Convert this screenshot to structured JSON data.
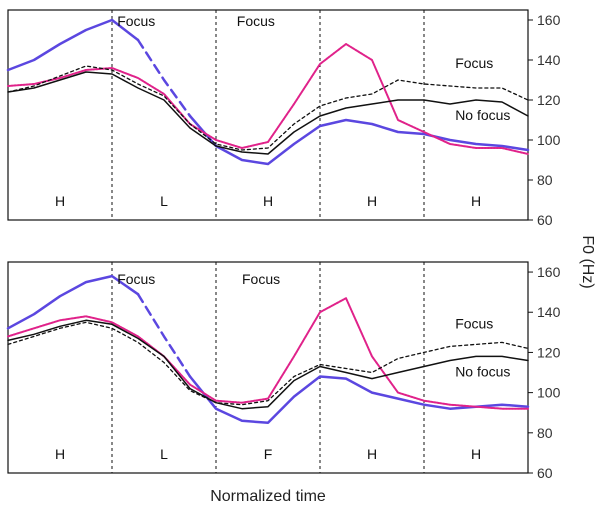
{
  "chart_data": [
    {
      "type": "line",
      "panel": "top",
      "x": [
        0,
        0.05,
        0.1,
        0.15,
        0.2,
        0.25,
        0.3,
        0.35,
        0.4,
        0.45,
        0.5,
        0.55,
        0.6,
        0.65,
        0.7,
        0.75,
        0.8,
        0.85,
        0.9,
        0.95,
        1.0
      ],
      "series": [
        {
          "key": "blue_solid",
          "color": "#5b47e0",
          "dash": "none",
          "width": 2.5,
          "values": [
            135,
            140,
            148,
            155,
            160,
            150,
            null,
            null,
            null,
            null,
            null,
            null,
            null,
            null,
            null,
            null,
            null,
            null,
            null,
            null,
            null
          ]
        },
        {
          "key": "blue_dashed",
          "color": "#5b47e0",
          "dash": "9,6",
          "width": 2.5,
          "values": [
            null,
            null,
            null,
            null,
            null,
            150,
            130,
            112,
            null,
            null,
            null,
            null,
            null,
            null,
            null,
            null,
            null,
            null,
            null,
            null,
            null
          ]
        },
        {
          "key": "blue_low",
          "color": "#5b47e0",
          "dash": "none",
          "width": 2.5,
          "values": [
            null,
            null,
            null,
            null,
            null,
            null,
            null,
            112,
            97,
            90,
            88,
            98,
            107,
            110,
            108,
            104,
            103,
            100,
            98,
            97,
            95
          ]
        },
        {
          "key": "pink",
          "color": "#e0228a",
          "dash": "2,1",
          "width": 2,
          "values": [
            127,
            128,
            131,
            135,
            136,
            131,
            123,
            108,
            100,
            96,
            99,
            118,
            138,
            148,
            140,
            110,
            104,
            98,
            96,
            96,
            93
          ]
        },
        {
          "key": "black_dashed",
          "color": "#111111",
          "dash": "3,3",
          "width": 1.3,
          "values": [
            124,
            127,
            132,
            137,
            135,
            128,
            122,
            108,
            98,
            95,
            96,
            108,
            117,
            121,
            123,
            130,
            128,
            127,
            126,
            126,
            120
          ]
        },
        {
          "key": "black_solid",
          "color": "#111111",
          "dash": "none",
          "width": 1.5,
          "values": [
            124,
            126,
            130,
            134,
            133,
            126,
            120,
            106,
            97,
            94,
            93,
            104,
            112,
            116,
            118,
            120,
            120,
            118,
            120,
            119,
            112
          ]
        }
      ],
      "ylim": [
        60,
        165
      ],
      "yticks": [
        60,
        80,
        100,
        120,
        140,
        160
      ],
      "boundaries": [
        0.2,
        0.4,
        0.6,
        0.8
      ],
      "segment_labels": [
        "H",
        "L",
        "H",
        "H",
        "H"
      ],
      "annotations": [
        {
          "text": "Focus",
          "x": 0.21,
          "y": 157
        },
        {
          "text": "Focus",
          "x": 0.44,
          "y": 157
        },
        {
          "text": "Focus",
          "x": 0.86,
          "y": 136
        },
        {
          "text": "No focus",
          "x": 0.86,
          "y": 110
        }
      ]
    },
    {
      "type": "line",
      "panel": "bottom",
      "x": [
        0,
        0.05,
        0.1,
        0.15,
        0.2,
        0.25,
        0.3,
        0.35,
        0.4,
        0.45,
        0.5,
        0.55,
        0.6,
        0.65,
        0.7,
        0.75,
        0.8,
        0.85,
        0.9,
        0.95,
        1.0
      ],
      "series": [
        {
          "key": "blue_solid",
          "color": "#5b47e0",
          "dash": "none",
          "width": 2.5,
          "values": [
            132,
            139,
            148,
            155,
            158,
            149,
            null,
            null,
            null,
            null,
            null,
            null,
            null,
            null,
            null,
            null,
            null,
            null,
            null,
            null,
            null
          ]
        },
        {
          "key": "blue_dashed",
          "color": "#5b47e0",
          "dash": "9,6",
          "width": 2.5,
          "values": [
            null,
            null,
            null,
            null,
            null,
            149,
            128,
            108,
            null,
            null,
            null,
            null,
            null,
            null,
            null,
            null,
            null,
            null,
            null,
            null,
            null
          ]
        },
        {
          "key": "blue_low",
          "color": "#5b47e0",
          "dash": "none",
          "width": 2.5,
          "values": [
            null,
            null,
            null,
            null,
            null,
            null,
            null,
            108,
            92,
            86,
            85,
            98,
            108,
            107,
            100,
            97,
            94,
            92,
            93,
            94,
            93
          ]
        },
        {
          "key": "pink",
          "color": "#e0228a",
          "dash": "2,1",
          "width": 2,
          "values": [
            128,
            132,
            136,
            138,
            135,
            128,
            118,
            104,
            96,
            95,
            97,
            118,
            140,
            147,
            118,
            100,
            96,
            94,
            93,
            92,
            92
          ]
        },
        {
          "key": "black_dashed",
          "color": "#111111",
          "dash": "3,3",
          "width": 1.3,
          "values": [
            124,
            128,
            132,
            135,
            132,
            125,
            115,
            101,
            95,
            94,
            96,
            108,
            114,
            112,
            110,
            117,
            120,
            123,
            124,
            125,
            122
          ]
        },
        {
          "key": "black_solid",
          "color": "#111111",
          "dash": "none",
          "width": 1.5,
          "values": [
            126,
            129,
            133,
            136,
            134,
            127,
            118,
            102,
            95,
            92,
            93,
            106,
            113,
            110,
            107,
            110,
            113,
            116,
            118,
            118,
            116
          ]
        }
      ],
      "ylim": [
        60,
        165
      ],
      "yticks": [
        60,
        80,
        100,
        120,
        140,
        160
      ],
      "boundaries": [
        0.2,
        0.4,
        0.6,
        0.8
      ],
      "segment_labels": [
        "H",
        "L",
        "F",
        "H",
        "H"
      ],
      "annotations": [
        {
          "text": "Focus",
          "x": 0.21,
          "y": 154
        },
        {
          "text": "Focus",
          "x": 0.45,
          "y": 154
        },
        {
          "text": "Focus",
          "x": 0.86,
          "y": 132
        },
        {
          "text": "No focus",
          "x": 0.86,
          "y": 108
        }
      ]
    }
  ],
  "xlabel": "Normalized time",
  "ylabel": "F0 (Hz)"
}
